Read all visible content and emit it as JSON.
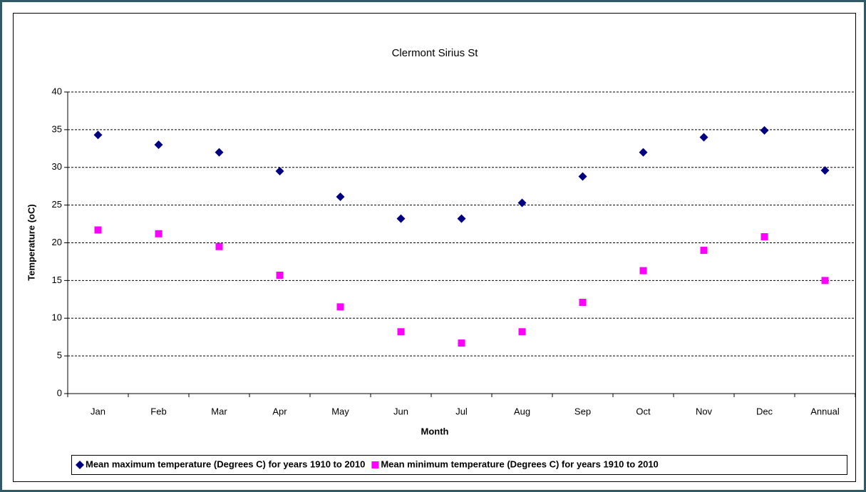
{
  "chart_data": {
    "type": "scatter",
    "title": "Clermont Sirius St",
    "x_label": "Month",
    "y_label": "Temperature (oC)",
    "categories": [
      "Jan",
      "Feb",
      "Mar",
      "Apr",
      "May",
      "Jun",
      "Jul",
      "Aug",
      "Sep",
      "Oct",
      "Nov",
      "Dec",
      "Annual"
    ],
    "series": [
      {
        "name": "Mean maximum temperature (Degrees C) for years 1910 to 2010",
        "color": "#000080",
        "marker": "diamond",
        "values": [
          34.3,
          33.0,
          32.0,
          29.5,
          26.1,
          23.2,
          23.2,
          25.3,
          28.8,
          32.0,
          34.0,
          34.9,
          29.6
        ]
      },
      {
        "name": "Mean minimum temperature (Degrees C) for years 1910 to 2010",
        "color": "#ff00ff",
        "marker": "square",
        "values": [
          21.7,
          21.2,
          19.5,
          15.7,
          11.5,
          8.2,
          6.7,
          8.2,
          12.1,
          16.3,
          19.0,
          20.8,
          15.0
        ]
      }
    ],
    "ylim": [
      0,
      40
    ],
    "yticks": [
      0,
      5,
      10,
      15,
      20,
      25,
      30,
      35,
      40
    ],
    "grid": true,
    "legend": "bottom"
  }
}
